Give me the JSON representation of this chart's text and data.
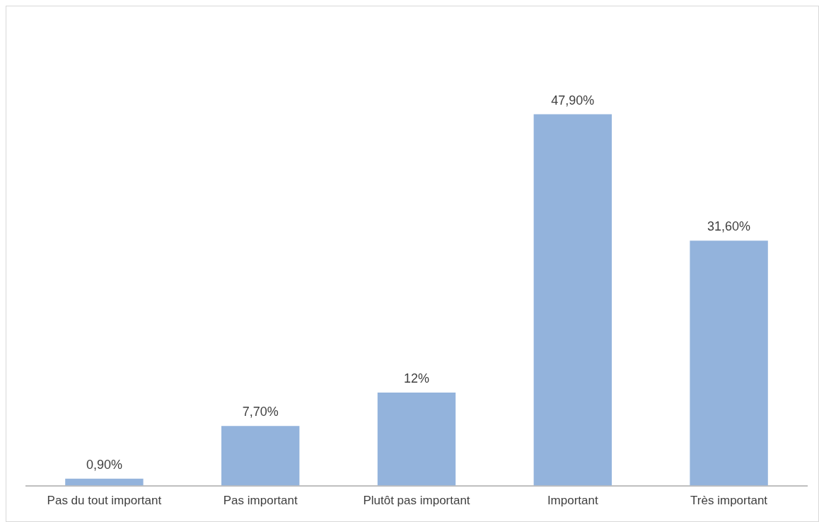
{
  "chart_data": {
    "type": "bar",
    "categories": [
      "Pas du tout important",
      "Pas important",
      "Plutôt pas important",
      "Important",
      "Très important"
    ],
    "values": [
      0.9,
      7.7,
      12,
      47.9,
      31.6
    ],
    "value_labels": [
      "0,90%",
      "7,70%",
      "12%",
      "47,90%",
      "31,60%"
    ],
    "color": "#93b3dc",
    "grid": false,
    "legend": false
  }
}
